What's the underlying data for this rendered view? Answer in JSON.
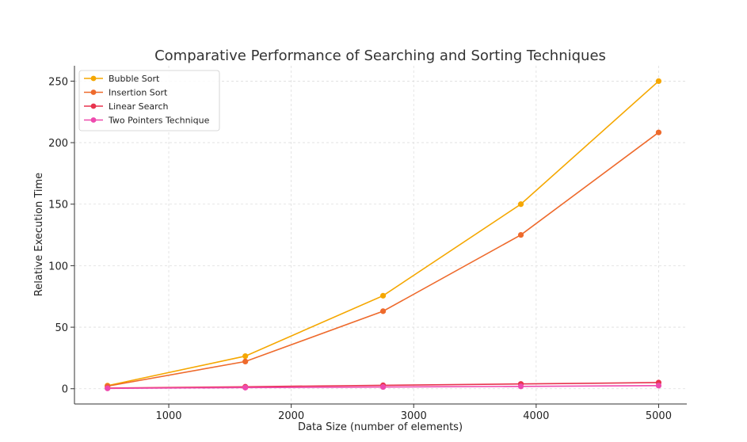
{
  "chart_data": {
    "type": "line",
    "title": "Comparative Performance of Searching and Sorting Techniques",
    "xlabel": "Data Size (number of elements)",
    "ylabel": "Relative Execution Time",
    "x": [
      500,
      1625,
      2750,
      3875,
      5000
    ],
    "xlim": [
      230,
      5230
    ],
    "ylim": [
      -12.4,
      262.5
    ],
    "xticks": [
      1000,
      2000,
      3000,
      4000,
      5000
    ],
    "yticks": [
      0,
      50,
      100,
      150,
      200,
      250
    ],
    "grid": true,
    "legend_position": "top-left",
    "series": [
      {
        "name": "Bubble Sort",
        "color": "#F5A700",
        "values": [
          2.5,
          26.5,
          75.6,
          150,
          250
        ]
      },
      {
        "name": "Insertion Sort",
        "color": "#EE6A2C",
        "values": [
          2.1,
          22.1,
          63,
          125,
          208.3
        ]
      },
      {
        "name": "Linear Search",
        "color": "#E8344E",
        "values": [
          0.5,
          1.6,
          2.8,
          3.9,
          5
        ]
      },
      {
        "name": "Two Pointers Technique",
        "color": "#EE4AAE",
        "values": [
          0.3,
          0.9,
          1.4,
          1.9,
          2.5
        ]
      }
    ]
  }
}
